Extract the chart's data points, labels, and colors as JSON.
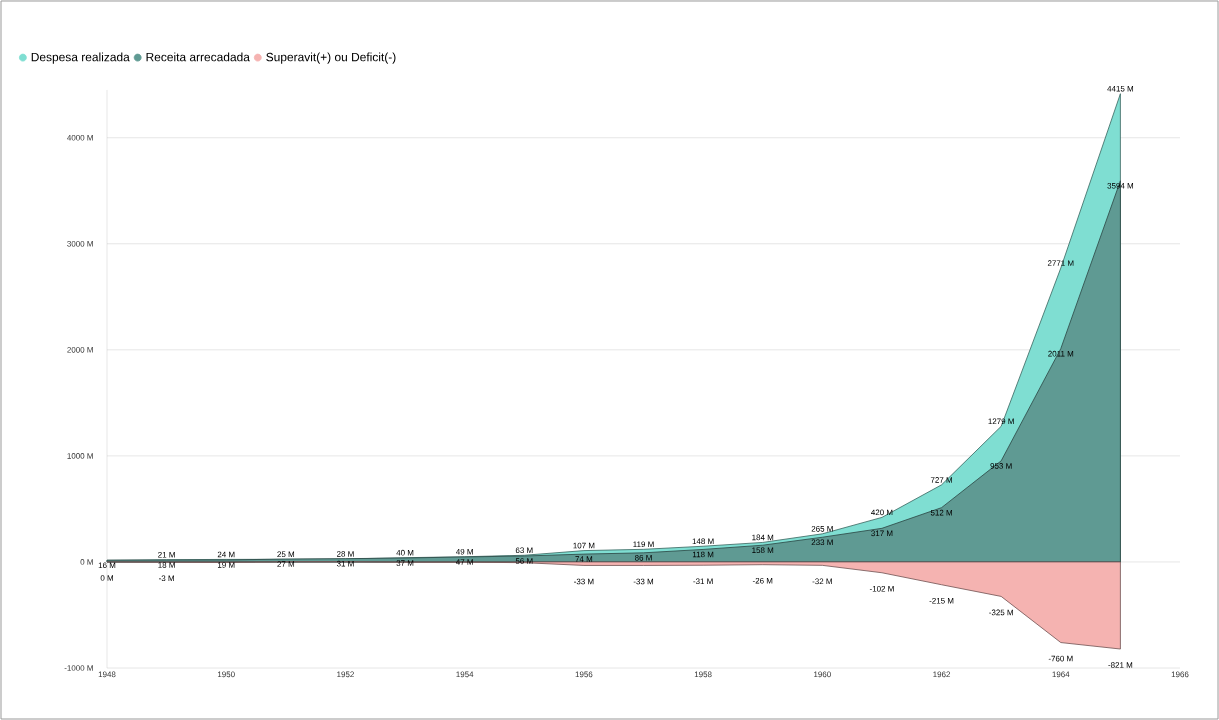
{
  "chart_data": {
    "type": "area",
    "x": [
      1948,
      1949,
      1950,
      1951,
      1952,
      1953,
      1954,
      1955,
      1956,
      1957,
      1958,
      1959,
      1960,
      1961,
      1962,
      1963,
      1964,
      1965
    ],
    "series": [
      {
        "name": "Despesa realizada",
        "color": "#7fded2",
        "values": [
          16,
          21,
          24,
          25,
          28,
          40,
          49,
          63,
          107,
          119,
          148,
          184,
          265,
          420,
          727,
          1279,
          2771,
          4415
        ],
        "value_labels": [
          null,
          "21 M",
          "24 M",
          "25 M",
          "28 M",
          "40 M",
          "49 M",
          "63 M",
          "107 M",
          "119 M",
          "148 M",
          "184 M",
          "265 M",
          "420 M",
          "727 M",
          "1279 M",
          "2771 M",
          "4415 M"
        ]
      },
      {
        "name": "Receita arrecadada",
        "color": "#5f9a93",
        "values": [
          16,
          18,
          19,
          27,
          31,
          37,
          47,
          56,
          74,
          86,
          118,
          158,
          233,
          317,
          512,
          953,
          2011,
          3594
        ],
        "value_labels": [
          "16 M",
          "18 M",
          "19 M",
          "27 M",
          "31 M",
          "37 M",
          "47 M",
          "56 M",
          "74 M",
          "86 M",
          "118 M",
          "158 M",
          "233 M",
          "317 M",
          "512 M",
          "953 M",
          "2011 M",
          "3594 M"
        ]
      },
      {
        "name": "Superavit(+) ou Deficit(-)",
        "color": "#f5b3b1",
        "values": [
          0,
          -3,
          -5,
          2,
          3,
          -3,
          -2,
          -7,
          -33,
          -33,
          -31,
          -26,
          -32,
          -102,
          -215,
          -325,
          -760,
          -821
        ],
        "value_labels": [
          "0 M",
          "-3 M",
          null,
          null,
          null,
          null,
          null,
          null,
          "-33 M",
          "-33 M",
          "-31 M",
          "-26 M",
          "-32 M",
          "-102 M",
          "-215 M",
          "-325 M",
          "-760 M",
          "-821 M"
        ]
      }
    ],
    "xlim": [
      1948,
      1966
    ],
    "xticks": [
      1948,
      1950,
      1952,
      1954,
      1956,
      1958,
      1960,
      1962,
      1964,
      1966
    ],
    "ylim": [
      -1000,
      4450
    ],
    "yticks": [
      {
        "value": -1000,
        "label": "-1000 M"
      },
      {
        "value": 0,
        "label": "0 M"
      },
      {
        "value": 1000,
        "label": "1000 M"
      },
      {
        "value": 2000,
        "label": "2000 M"
      },
      {
        "value": 3000,
        "label": "3000 M"
      },
      {
        "value": 4000,
        "label": "4000 M"
      }
    ],
    "grid": "y",
    "legend": "top left"
  }
}
